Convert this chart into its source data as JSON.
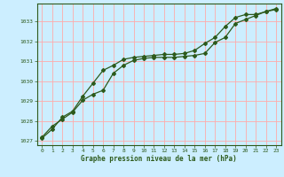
{
  "xlabel": "Graphe pression niveau de la mer (hPa)",
  "background_color": "#cceeff",
  "grid_color": "#ffaaaa",
  "line_color": "#2d5a1b",
  "line_color2": "#2d5a1b",
  "ylim": [
    1026.8,
    1033.9
  ],
  "xlim": [
    -0.5,
    23.5
  ],
  "yticks": [
    1027,
    1028,
    1029,
    1030,
    1031,
    1032,
    1033
  ],
  "xticks": [
    0,
    1,
    2,
    3,
    4,
    5,
    6,
    7,
    8,
    9,
    10,
    11,
    12,
    13,
    14,
    15,
    16,
    17,
    18,
    19,
    20,
    21,
    22,
    23
  ],
  "series1_x": [
    0,
    1,
    2,
    3,
    4,
    5,
    6,
    7,
    8,
    9,
    10,
    11,
    12,
    13,
    14,
    15,
    16,
    17,
    18,
    19,
    20,
    21,
    22,
    23
  ],
  "series1_y": [
    1027.2,
    1027.75,
    1028.1,
    1028.45,
    1029.05,
    1029.35,
    1029.55,
    1030.4,
    1030.8,
    1031.05,
    1031.15,
    1031.2,
    1031.2,
    1031.2,
    1031.25,
    1031.3,
    1031.4,
    1031.95,
    1032.2,
    1032.9,
    1033.1,
    1033.3,
    1033.5,
    1033.65
  ],
  "series2_x": [
    0,
    1,
    2,
    3,
    4,
    5,
    6,
    7,
    8,
    9,
    10,
    11,
    12,
    13,
    14,
    15,
    16,
    17,
    18,
    19,
    20,
    21,
    22,
    23
  ],
  "series2_y": [
    1027.15,
    1027.6,
    1028.2,
    1028.5,
    1029.25,
    1029.9,
    1030.55,
    1030.8,
    1031.1,
    1031.2,
    1031.25,
    1031.3,
    1031.35,
    1031.35,
    1031.4,
    1031.55,
    1031.9,
    1032.2,
    1032.75,
    1033.2,
    1033.35,
    1033.35,
    1033.5,
    1033.6
  ]
}
